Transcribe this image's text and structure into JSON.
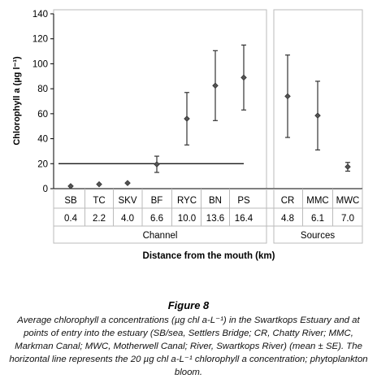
{
  "chart_data": {
    "type": "scatter",
    "ylabel": "Chlorophyll a (µg l⁻¹)",
    "ylim": [
      0,
      140
    ],
    "yticks": [
      0,
      20,
      40,
      60,
      80,
      100,
      120,
      140
    ],
    "xlabel": "Distance from the mouth (km)",
    "threshold": 20,
    "panels": [
      {
        "label": "Channel",
        "categories": [
          "SB",
          "TC",
          "SKV",
          "BF",
          "RYC",
          "BN",
          "PS"
        ],
        "distances": [
          "0.4",
          "2.2",
          "4.0",
          "6.6",
          "10.0",
          "13.6",
          "16.4"
        ],
        "values": [
          2,
          3.5,
          4.5,
          19.5,
          56,
          82.5,
          89
        ],
        "errors": [
          0.7,
          0.8,
          0.8,
          6.5,
          21,
          28,
          26
        ]
      },
      {
        "label": "Sources",
        "categories": [
          "CR",
          "MMC",
          "MWC"
        ],
        "distances": [
          "4.8",
          "6.1",
          "7.0"
        ],
        "values": [
          74,
          58.5,
          17.5
        ],
        "errors": [
          33,
          27.5,
          3.5
        ]
      }
    ],
    "colors": {
      "marker": "#555555",
      "axis": "#000000",
      "frame": "#bbbbbb"
    }
  },
  "figure": {
    "title": "Figure 8",
    "caption": "Average chlorophyll a concentrations (µg chl a-L⁻¹) in the Swartkops Estuary and at points of entry into the estuary (SB/sea, Settlers Bridge; CR, Chatty River; MMC, Markman Canal; MWC, Motherwell Canal; River, Swartkops River) (mean ± SE). The horizontal line represents the 20 µg chl a-L⁻¹ chlorophyll a concentration; phytoplankton bloom."
  }
}
